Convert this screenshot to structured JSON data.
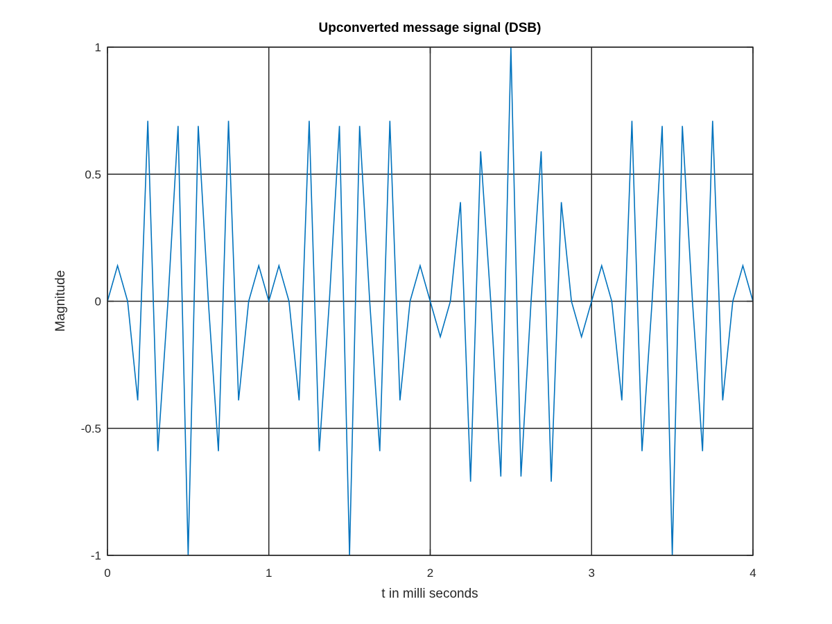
{
  "chart_data": {
    "type": "line",
    "title": "Upconverted message signal (DSB)",
    "xlabel": "t in milli seconds",
    "ylabel": "Magnitude",
    "xlim": [
      0,
      4
    ],
    "ylim": [
      -1,
      1
    ],
    "xticks": [
      0,
      1,
      2,
      3,
      4
    ],
    "xtick_labels": [
      "0",
      "1",
      "2",
      "3",
      "4"
    ],
    "yticks": [
      -1,
      -0.5,
      0,
      0.5,
      1
    ],
    "ytick_labels": [
      "-1",
      "-0.5",
      "0",
      "0.5",
      "1"
    ],
    "grid": true,
    "series": [
      {
        "color": "#0072bd",
        "x": [
          0,
          0.0625,
          0.125,
          0.1875,
          0.25,
          0.3125,
          0.375,
          0.4375,
          0.5,
          0.5625,
          0.625,
          0.6875,
          0.75,
          0.8125,
          0.875,
          0.9375,
          1,
          1.0625,
          1.125,
          1.1875,
          1.25,
          1.3125,
          1.375,
          1.4375,
          1.5,
          1.5625,
          1.625,
          1.6875,
          1.75,
          1.8125,
          1.875,
          1.9375,
          2,
          2.0625,
          2.125,
          2.1875,
          2.25,
          2.3125,
          2.375,
          2.4375,
          2.5,
          2.5625,
          2.625,
          2.6875,
          2.75,
          2.8125,
          2.875,
          2.9375,
          3,
          3.0625,
          3.125,
          3.1875,
          3.25,
          3.3125,
          3.375,
          3.4375,
          3.5,
          3.5625,
          3.625,
          3.6875,
          3.75,
          3.8125,
          3.875,
          3.9375,
          4
        ],
        "y": [
          0,
          0.14,
          0,
          -0.39,
          0.71,
          -0.59,
          0,
          0.69,
          -1,
          0.69,
          0,
          -0.59,
          0.71,
          -0.39,
          0,
          0.14,
          0,
          0.14,
          0,
          -0.39,
          0.71,
          -0.59,
          0,
          0.69,
          -1,
          0.69,
          0,
          -0.59,
          0.71,
          -0.39,
          0,
          0.14,
          0,
          -0.14,
          0,
          0.39,
          -0.71,
          0.59,
          0,
          -0.69,
          1,
          -0.69,
          0,
          0.59,
          -0.71,
          0.39,
          0,
          -0.14,
          0,
          0.14,
          0,
          -0.39,
          0.71,
          -0.59,
          0,
          0.69,
          -1,
          0.69,
          0,
          -0.59,
          0.71,
          -0.39,
          0,
          0.14,
          0
        ]
      }
    ]
  }
}
